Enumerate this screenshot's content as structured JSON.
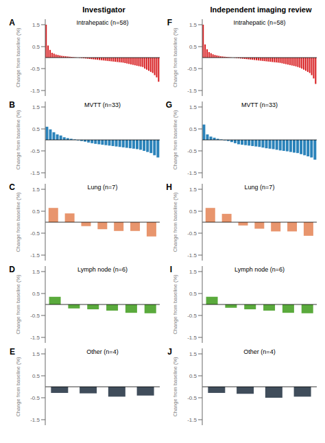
{
  "chart_data": [
    {
      "type": "bar",
      "title": "Intrahepatic (n=58)",
      "annotations": [
        "A",
        "Investigator"
      ],
      "ylabel": "Change from baseline (%)",
      "color": "#d7191c",
      "ylim": [
        -1.75,
        1.75
      ],
      "yticks": [
        -1.5,
        -0.5,
        0.5,
        1.5
      ],
      "tick_labels": "y",
      "grid": false,
      "values": [
        1.5,
        0.55,
        0.35,
        0.22,
        0.18,
        0.14,
        0.12,
        0.1,
        0.08,
        0.07,
        0.06,
        0.05,
        0.04,
        0.03,
        0.02,
        0.01,
        0.0,
        -0.01,
        -0.02,
        -0.03,
        -0.04,
        -0.05,
        -0.06,
        -0.07,
        -0.08,
        -0.09,
        -0.1,
        -0.11,
        -0.12,
        -0.13,
        -0.14,
        -0.15,
        -0.16,
        -0.17,
        -0.18,
        -0.19,
        -0.2,
        -0.21,
        -0.22,
        -0.23,
        -0.25,
        -0.27,
        -0.29,
        -0.31,
        -0.33,
        -0.35,
        -0.37,
        -0.39,
        -0.41,
        -0.43,
        -0.5,
        -0.55,
        -0.6,
        -0.65,
        -0.7,
        -0.8,
        -0.9,
        -1.1
      ]
    },
    {
      "type": "bar",
      "title": "MVTT (n=33)",
      "annotations": [
        "B"
      ],
      "ylabel": "Change from baseline (%)",
      "color": "#2b83ba",
      "ylim": [
        -1.75,
        1.75
      ],
      "yticks": [
        -1.5,
        -0.5,
        0.5,
        1.5
      ],
      "tick_labels": "y",
      "grid": false,
      "values": [
        0.6,
        0.48,
        0.35,
        0.25,
        0.2,
        0.12,
        0.08,
        0.05,
        0.02,
        -0.02,
        -0.05,
        -0.08,
        -0.12,
        -0.15,
        -0.18,
        -0.2,
        -0.22,
        -0.24,
        -0.26,
        -0.28,
        -0.3,
        -0.32,
        -0.34,
        -0.36,
        -0.38,
        -0.4,
        -0.42,
        -0.45,
        -0.5,
        -0.55,
        -0.6,
        -0.7,
        -0.8
      ]
    },
    {
      "type": "bar",
      "title": "Lung (n=7)",
      "annotations": [
        "C"
      ],
      "ylabel": "Change from baseline (%)",
      "color": "#e8956d",
      "ylim": [
        -1.75,
        1.75
      ],
      "yticks": [
        -1.5,
        -0.5,
        0.5,
        1.5
      ],
      "tick_labels": "y",
      "grid": false,
      "values": [
        0.65,
        0.4,
        -0.18,
        -0.32,
        -0.4,
        -0.4,
        -0.65
      ]
    },
    {
      "type": "bar",
      "title": "Lymph node (n=6)",
      "annotations": [
        "D"
      ],
      "ylabel": "Change from baseline (%)",
      "color": "#5aaa3c",
      "ylim": [
        -1.75,
        1.75
      ],
      "yticks": [
        -1.5,
        -0.5,
        0.5,
        1.5
      ],
      "tick_labels": "y",
      "grid": false,
      "values": [
        0.35,
        -0.18,
        -0.22,
        -0.28,
        -0.38,
        -0.4
      ]
    },
    {
      "type": "bar",
      "title": "Other (n=4)",
      "annotations": [
        "E"
      ],
      "ylabel": "Change from baseline (%)",
      "color": "#404d5b",
      "ylim": [
        -1.75,
        1.75
      ],
      "yticks": [
        -1.5,
        -0.5,
        0.5,
        1.5
      ],
      "tick_labels": "y",
      "grid": false,
      "values": [
        -0.28,
        -0.3,
        -0.45,
        -0.4
      ]
    },
    {
      "type": "bar",
      "title": "Intrahepatic (n=58)",
      "annotations": [
        "F",
        "Independent imaging review"
      ],
      "ylabel": "Change from baseline (%)",
      "color": "#d7191c",
      "ylim": [
        -1.75,
        1.75
      ],
      "yticks": [
        -1.5,
        -0.5,
        0.5,
        1.5
      ],
      "tick_labels": "y",
      "grid": false,
      "values": [
        1.5,
        0.6,
        0.38,
        0.25,
        0.2,
        0.15,
        0.12,
        0.1,
        0.08,
        0.06,
        0.05,
        0.04,
        0.03,
        0.02,
        0.01,
        0.0,
        -0.01,
        -0.02,
        -0.03,
        -0.04,
        -0.05,
        -0.06,
        -0.07,
        -0.08,
        -0.09,
        -0.1,
        -0.11,
        -0.12,
        -0.13,
        -0.14,
        -0.15,
        -0.16,
        -0.17,
        -0.18,
        -0.19,
        -0.2,
        -0.21,
        -0.22,
        -0.23,
        -0.24,
        -0.26,
        -0.28,
        -0.3,
        -0.32,
        -0.34,
        -0.36,
        -0.38,
        -0.4,
        -0.43,
        -0.46,
        -0.5,
        -0.55,
        -0.6,
        -0.65,
        -0.7,
        -0.8,
        -0.95,
        -1.2
      ]
    },
    {
      "type": "bar",
      "title": "MVTT (n=33)",
      "annotations": [
        "G"
      ],
      "ylabel": "Change from baseline (%)",
      "color": "#2b83ba",
      "ylim": [
        -1.75,
        1.75
      ],
      "yticks": [
        -1.5,
        -0.5,
        0.5,
        1.5
      ],
      "tick_labels": "y",
      "grid": false,
      "values": [
        0.7,
        0.25,
        0.15,
        0.1,
        0.05,
        0.02,
        -0.02,
        -0.05,
        -0.1,
        -0.15,
        -0.2,
        -0.22,
        -0.24,
        -0.26,
        -0.28,
        -0.3,
        -0.32,
        -0.35,
        -0.38,
        -0.4,
        -0.42,
        -0.45,
        -0.48,
        -0.5,
        -0.52,
        -0.55,
        -0.58,
        -0.6,
        -0.65,
        -0.7,
        -0.75,
        -0.8,
        -0.9
      ]
    },
    {
      "type": "bar",
      "title": "Lung (n=7)",
      "annotations": [
        "H"
      ],
      "ylabel": "Change from baseline (%)",
      "color": "#e8956d",
      "ylim": [
        -1.75,
        1.75
      ],
      "yticks": [
        -1.5,
        -0.5,
        0.5,
        1.5
      ],
      "tick_labels": "y",
      "grid": false,
      "values": [
        0.65,
        0.38,
        -0.15,
        -0.3,
        -0.42,
        -0.42,
        -0.62
      ]
    },
    {
      "type": "bar",
      "title": "Lymph node (n=6)",
      "annotations": [
        "I"
      ],
      "ylabel": "Change from baseline (%)",
      "color": "#5aaa3c",
      "ylim": [
        -1.75,
        1.75
      ],
      "yticks": [
        -1.5,
        -0.5,
        0.5,
        1.5
      ],
      "tick_labels": "y",
      "grid": false,
      "values": [
        0.35,
        -0.15,
        -0.22,
        -0.28,
        -0.38,
        -0.4
      ]
    },
    {
      "type": "bar",
      "title": "Other (n=4)",
      "annotations": [
        "J"
      ],
      "ylabel": "Change from baseline (%)",
      "color": "#404d5b",
      "ylim": [
        -1.75,
        1.75
      ],
      "yticks": [
        -1.5,
        -0.5,
        0.5,
        1.5
      ],
      "tick_labels": "y",
      "grid": false,
      "values": [
        -0.28,
        -0.32,
        -0.5,
        -0.45
      ]
    }
  ]
}
